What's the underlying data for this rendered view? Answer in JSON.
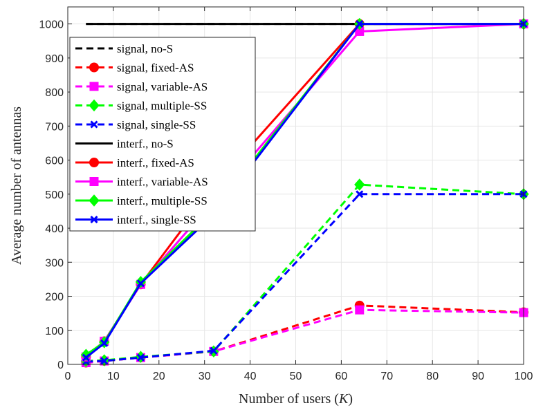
{
  "chart_data": {
    "type": "line",
    "xlabel_prefix": "Number of users (",
    "xlabel_var": "K",
    "xlabel_suffix": ")",
    "ylabel": "Average number of antennas",
    "xlim": [
      0,
      100
    ],
    "ylim": [
      0,
      1050
    ],
    "xticks": [
      0,
      10,
      20,
      30,
      40,
      50,
      60,
      70,
      80,
      90,
      100
    ],
    "yticks": [
      0,
      100,
      200,
      300,
      400,
      500,
      600,
      700,
      800,
      900,
      1000
    ],
    "grid": true,
    "legend_position": "top-left",
    "x": [
      4,
      8,
      16,
      32,
      64,
      100
    ],
    "series": [
      {
        "name": "signal, no-S",
        "color": "#000000",
        "dash": true,
        "marker": "none",
        "values": [
          1000,
          1000,
          1000,
          1000,
          1000,
          1000
        ]
      },
      {
        "name": "signal, fixed-AS",
        "color": "#ff0000",
        "dash": true,
        "marker": "circle",
        "values": [
          5,
          10,
          20,
          38,
          173,
          153
        ]
      },
      {
        "name": "signal, variable-AS",
        "color": "#ff00ff",
        "dash": true,
        "marker": "square",
        "values": [
          5,
          10,
          20,
          38,
          160,
          152
        ]
      },
      {
        "name": "signal, multiple-SS",
        "color": "#00ff00",
        "dash": true,
        "marker": "diamond",
        "values": [
          10,
          12,
          22,
          38,
          528,
          500
        ]
      },
      {
        "name": "signal, single-SS",
        "color": "#0000ff",
        "dash": true,
        "marker": "x",
        "values": [
          8,
          10,
          20,
          40,
          500,
          500
        ]
      },
      {
        "name": "interf., no-S",
        "color": "#000000",
        "dash": false,
        "marker": "none",
        "values": [
          1000,
          1000,
          1000,
          1000,
          1000,
          1000
        ]
      },
      {
        "name": "interf., fixed-AS",
        "color": "#ff0000",
        "dash": false,
        "marker": "circle",
        "values": [
          22,
          68,
          235,
          520,
          1000,
          1000
        ]
      },
      {
        "name": "interf., variable-AS",
        "color": "#ff00ff",
        "dash": false,
        "marker": "square",
        "values": [
          22,
          68,
          235,
          480,
          978,
          1000
        ]
      },
      {
        "name": "interf., multiple-SS",
        "color": "#00ff00",
        "dash": false,
        "marker": "diamond",
        "values": [
          28,
          65,
          242,
          450,
          1000,
          1000
        ]
      },
      {
        "name": "interf., single-SS",
        "color": "#0000ff",
        "dash": false,
        "marker": "x",
        "values": [
          20,
          62,
          238,
          440,
          1000,
          1000
        ]
      }
    ]
  }
}
